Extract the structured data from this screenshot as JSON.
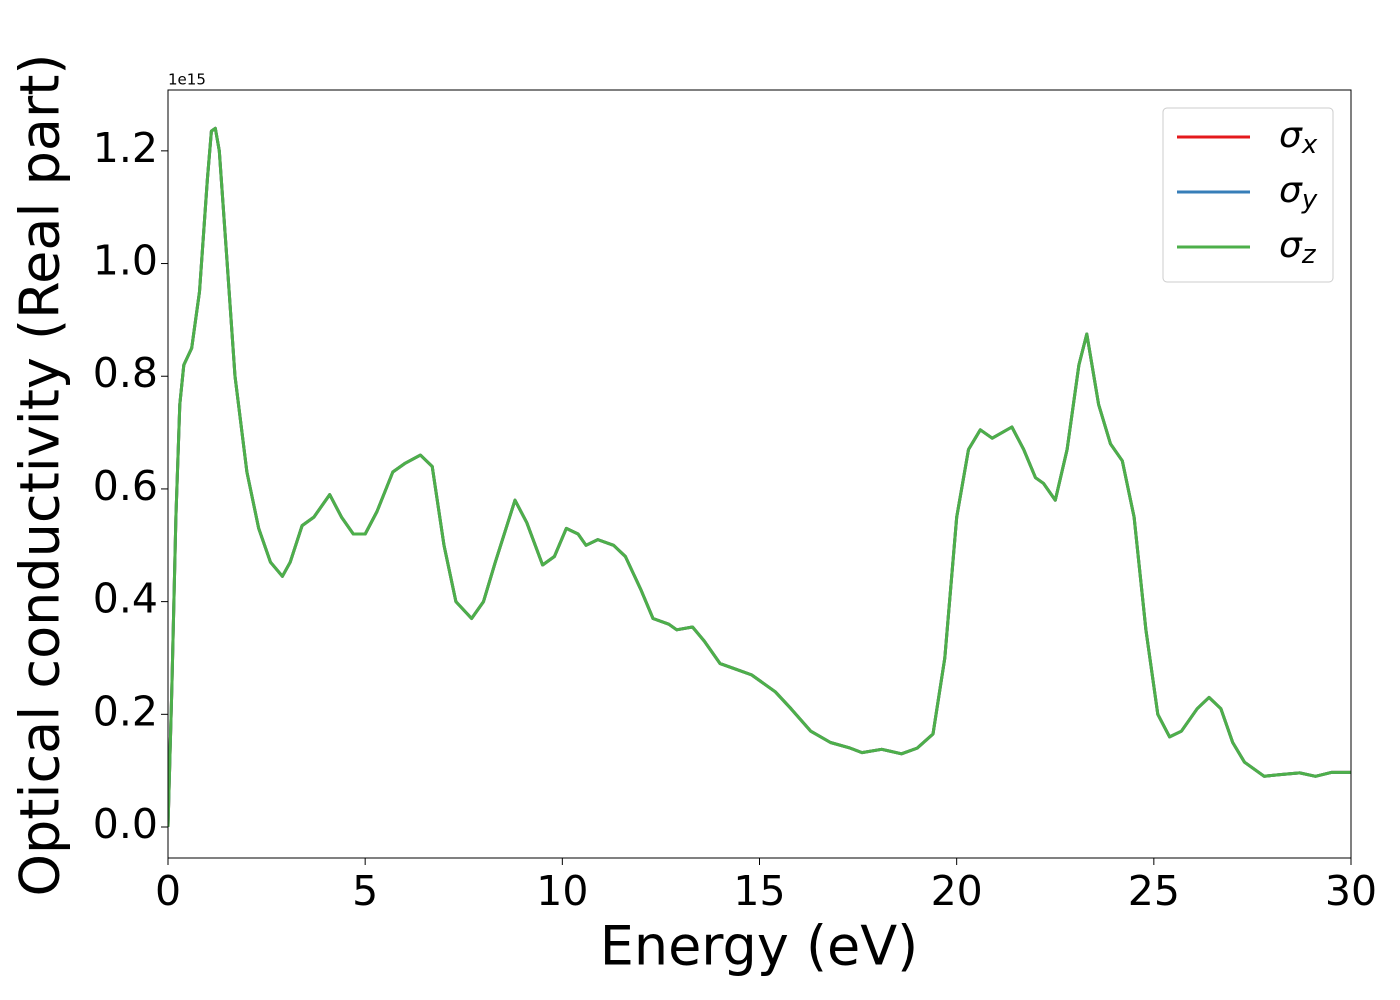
{
  "chart_data": {
    "type": "line",
    "xlabel": "Energy (eV)",
    "ylabel": "Optical conductivity (Real part)",
    "y_offset_label": "1e15",
    "x": [
      0,
      0.1,
      0.2,
      0.3,
      0.4,
      0.6,
      0.8,
      1.0,
      1.1,
      1.2,
      1.3,
      1.5,
      1.7,
      2.0,
      2.3,
      2.6,
      2.9,
      3.1,
      3.4,
      3.7,
      4.1,
      4.4,
      4.7,
      5.0,
      5.3,
      5.7,
      6.0,
      6.4,
      6.7,
      7.0,
      7.3,
      7.7,
      8.0,
      8.3,
      8.8,
      9.1,
      9.5,
      9.8,
      10.1,
      10.4,
      10.6,
      10.9,
      11.3,
      11.6,
      12.0,
      12.3,
      12.7,
      12.9,
      13.3,
      13.6,
      14.0,
      14.4,
      14.8,
      15.4,
      15.8,
      16.3,
      16.8,
      17.3,
      17.6,
      18.1,
      18.6,
      19.0,
      19.4,
      19.7,
      20.0,
      20.3,
      20.6,
      20.9,
      21.4,
      21.7,
      22.0,
      22.2,
      22.5,
      22.8,
      23.1,
      23.3,
      23.6,
      23.9,
      24.2,
      24.5,
      24.8,
      25.1,
      25.4,
      25.7,
      26.1,
      26.4,
      26.7,
      27.0,
      27.3,
      27.8,
      28.2,
      28.7,
      29.1,
      29.5,
      30
    ],
    "series": [
      {
        "name": "σx",
        "color": "#e41a1c",
        "values": [
          0.0,
          0.25,
          0.55,
          0.75,
          0.82,
          0.85,
          0.95,
          1.15,
          1.235,
          1.24,
          1.2,
          1.0,
          0.8,
          0.63,
          0.53,
          0.47,
          0.445,
          0.47,
          0.535,
          0.55,
          0.59,
          0.55,
          0.52,
          0.52,
          0.56,
          0.63,
          0.645,
          0.66,
          0.64,
          0.5,
          0.4,
          0.37,
          0.4,
          0.47,
          0.58,
          0.54,
          0.465,
          0.48,
          0.53,
          0.52,
          0.5,
          0.51,
          0.5,
          0.48,
          0.42,
          0.37,
          0.36,
          0.35,
          0.355,
          0.33,
          0.29,
          0.28,
          0.27,
          0.24,
          0.21,
          0.17,
          0.15,
          0.14,
          0.132,
          0.138,
          0.13,
          0.14,
          0.165,
          0.3,
          0.55,
          0.67,
          0.705,
          0.69,
          0.71,
          0.67,
          0.62,
          0.61,
          0.58,
          0.67,
          0.82,
          0.875,
          0.75,
          0.68,
          0.65,
          0.55,
          0.35,
          0.2,
          0.16,
          0.17,
          0.21,
          0.23,
          0.21,
          0.15,
          0.115,
          0.09,
          0.093,
          0.096,
          0.09,
          0.097,
          0.097
        ]
      },
      {
        "name": "σy",
        "color": "#377eb8",
        "values": [
          0.0,
          0.25,
          0.55,
          0.75,
          0.82,
          0.85,
          0.95,
          1.15,
          1.235,
          1.24,
          1.2,
          1.0,
          0.8,
          0.63,
          0.53,
          0.47,
          0.445,
          0.47,
          0.535,
          0.55,
          0.59,
          0.55,
          0.52,
          0.52,
          0.56,
          0.63,
          0.645,
          0.66,
          0.64,
          0.5,
          0.4,
          0.37,
          0.4,
          0.47,
          0.58,
          0.54,
          0.465,
          0.48,
          0.53,
          0.52,
          0.5,
          0.51,
          0.5,
          0.48,
          0.42,
          0.37,
          0.36,
          0.35,
          0.355,
          0.33,
          0.29,
          0.28,
          0.27,
          0.24,
          0.21,
          0.17,
          0.15,
          0.14,
          0.132,
          0.138,
          0.13,
          0.14,
          0.165,
          0.3,
          0.55,
          0.67,
          0.705,
          0.69,
          0.71,
          0.67,
          0.62,
          0.61,
          0.58,
          0.67,
          0.82,
          0.875,
          0.75,
          0.68,
          0.65,
          0.55,
          0.35,
          0.2,
          0.16,
          0.17,
          0.21,
          0.23,
          0.21,
          0.15,
          0.115,
          0.09,
          0.093,
          0.096,
          0.09,
          0.097,
          0.097
        ]
      },
      {
        "name": "σz",
        "color": "#4daf4a",
        "values": [
          0.0,
          0.25,
          0.55,
          0.75,
          0.82,
          0.85,
          0.95,
          1.15,
          1.235,
          1.24,
          1.2,
          1.0,
          0.8,
          0.63,
          0.53,
          0.47,
          0.445,
          0.47,
          0.535,
          0.55,
          0.59,
          0.55,
          0.52,
          0.52,
          0.56,
          0.63,
          0.645,
          0.66,
          0.64,
          0.5,
          0.4,
          0.37,
          0.4,
          0.47,
          0.58,
          0.54,
          0.465,
          0.48,
          0.53,
          0.52,
          0.5,
          0.51,
          0.5,
          0.48,
          0.42,
          0.37,
          0.36,
          0.35,
          0.355,
          0.33,
          0.29,
          0.28,
          0.27,
          0.24,
          0.21,
          0.17,
          0.15,
          0.14,
          0.132,
          0.138,
          0.13,
          0.14,
          0.165,
          0.3,
          0.55,
          0.67,
          0.705,
          0.69,
          0.71,
          0.67,
          0.62,
          0.61,
          0.58,
          0.67,
          0.82,
          0.875,
          0.75,
          0.68,
          0.65,
          0.55,
          0.35,
          0.2,
          0.16,
          0.17,
          0.21,
          0.23,
          0.21,
          0.15,
          0.115,
          0.09,
          0.093,
          0.096,
          0.09,
          0.097,
          0.097
        ]
      }
    ],
    "xlim": [
      0,
      30
    ],
    "xticks": [
      0,
      5,
      10,
      15,
      20,
      25,
      30
    ],
    "ylim": [
      -0.055,
      1.308
    ],
    "yticks": [
      {
        "value": 0,
        "label": "0.0"
      },
      0.2,
      0.4,
      0.6,
      0.8,
      {
        "value": 1,
        "label": "1.0"
      },
      1.2
    ],
    "legend": "upper right",
    "grid": false
  }
}
